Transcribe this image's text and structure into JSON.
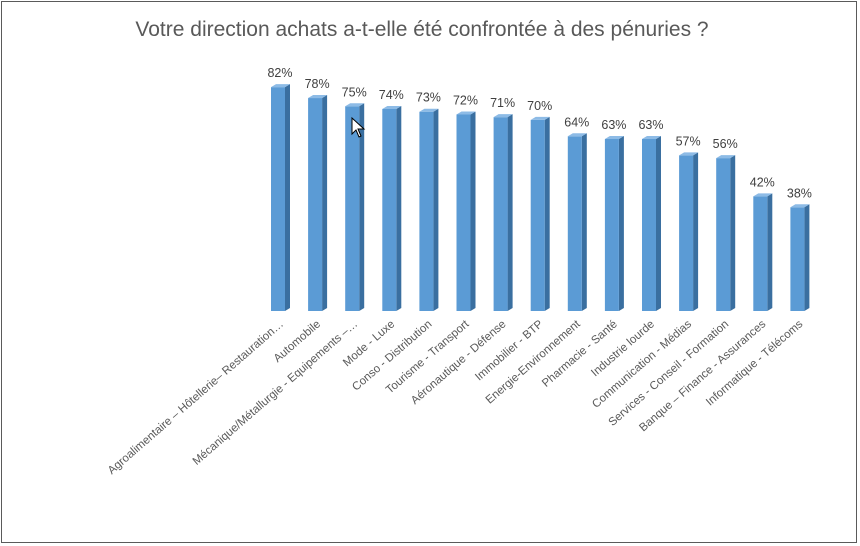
{
  "chart_data": {
    "type": "bar",
    "title": "Votre direction achats a-t-elle été confrontée à des pénuries ?",
    "categories": [
      "Agroalimentaire – Hôtellerie– Restauration…",
      "Automobile",
      "Mécanique/Métallurgie - Equipements –…",
      "Mode - Luxe",
      "Conso - Distribution",
      "Tourisme - Transport",
      "Aéronautique - Défense",
      "Immobilier - BTP",
      "Energie-Environnement",
      "Pharmacie - Santé",
      "Industrie lourde",
      "Communication - Médias",
      "Services - Conseil - Formation",
      "Banque – Finance - Assurances",
      "Informatique - Télécoms"
    ],
    "values": [
      82,
      78,
      75,
      74,
      73,
      72,
      71,
      70,
      64,
      63,
      63,
      57,
      56,
      42,
      38
    ],
    "labels": [
      "82%",
      "78%",
      "75%",
      "74%",
      "73%",
      "72%",
      "71%",
      "70%",
      "64%",
      "63%",
      "63%",
      "57%",
      "56%",
      "42%",
      "38%"
    ],
    "ylim": [
      0,
      100
    ],
    "grid": false,
    "legend": "none",
    "bar_color": "#5b9bd5",
    "bar_side_color": "#3a6fa0",
    "bar_top_color": "#8dbbe6"
  }
}
